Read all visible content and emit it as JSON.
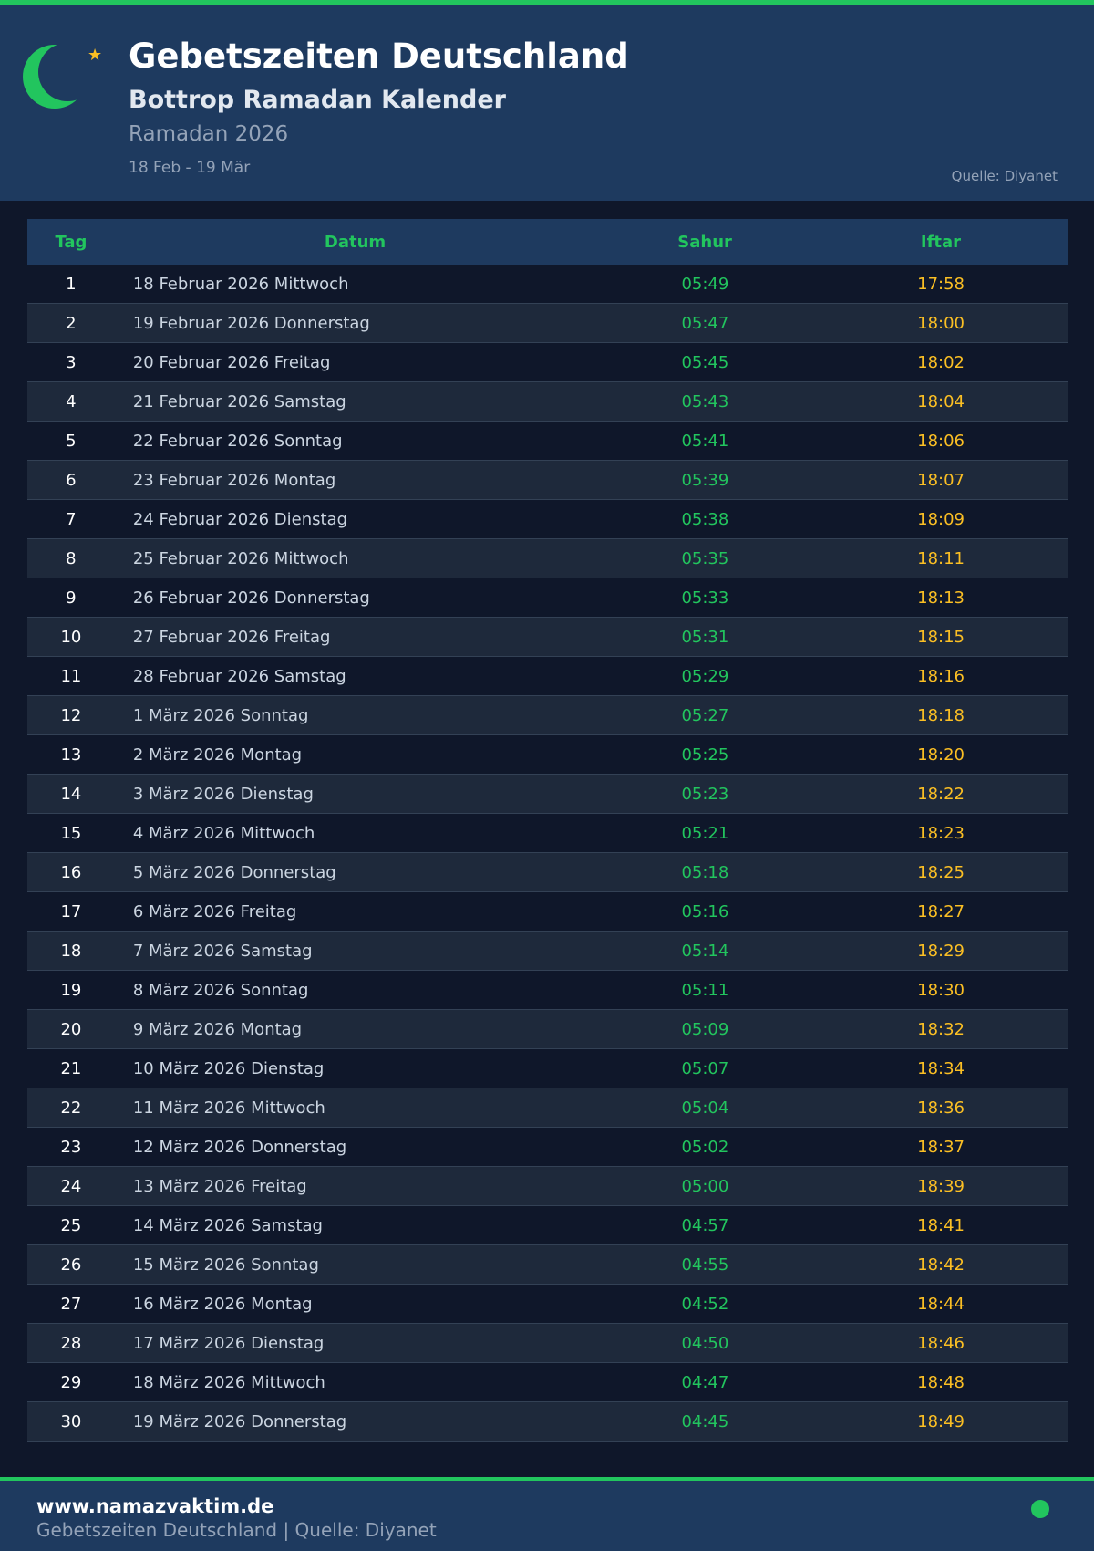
{
  "header": {
    "title": "Gebetszeiten Deutschland",
    "subtitle": "Bottrop Ramadan Kalender",
    "year_label": "Ramadan 2026",
    "range": "18 Feb - 19 Mär",
    "source": "Quelle: Diyanet"
  },
  "colors": {
    "accent": "#22c55e",
    "iftar": "#fbbf24",
    "header_bg": "#1e3a5f",
    "bg": "#0f172a"
  },
  "table": {
    "headers": [
      "Tag",
      "Datum",
      "Sahur",
      "Iftar"
    ],
    "rows": [
      [
        "1",
        "18 Februar 2026 Mittwoch",
        "05:49",
        "17:58"
      ],
      [
        "2",
        "19 Februar 2026 Donnerstag",
        "05:47",
        "18:00"
      ],
      [
        "3",
        "20 Februar 2026 Freitag",
        "05:45",
        "18:02"
      ],
      [
        "4",
        "21 Februar 2026 Samstag",
        "05:43",
        "18:04"
      ],
      [
        "5",
        "22 Februar 2026 Sonntag",
        "05:41",
        "18:06"
      ],
      [
        "6",
        "23 Februar 2026 Montag",
        "05:39",
        "18:07"
      ],
      [
        "7",
        "24 Februar 2026 Dienstag",
        "05:38",
        "18:09"
      ],
      [
        "8",
        "25 Februar 2026 Mittwoch",
        "05:35",
        "18:11"
      ],
      [
        "9",
        "26 Februar 2026 Donnerstag",
        "05:33",
        "18:13"
      ],
      [
        "10",
        "27 Februar 2026 Freitag",
        "05:31",
        "18:15"
      ],
      [
        "11",
        "28 Februar 2026 Samstag",
        "05:29",
        "18:16"
      ],
      [
        "12",
        "1 März 2026 Sonntag",
        "05:27",
        "18:18"
      ],
      [
        "13",
        "2 März 2026 Montag",
        "05:25",
        "18:20"
      ],
      [
        "14",
        "3 März 2026 Dienstag",
        "05:23",
        "18:22"
      ],
      [
        "15",
        "4 März 2026 Mittwoch",
        "05:21",
        "18:23"
      ],
      [
        "16",
        "5 März 2026 Donnerstag",
        "05:18",
        "18:25"
      ],
      [
        "17",
        "6 März 2026 Freitag",
        "05:16",
        "18:27"
      ],
      [
        "18",
        "7 März 2026 Samstag",
        "05:14",
        "18:29"
      ],
      [
        "19",
        "8 März 2026 Sonntag",
        "05:11",
        "18:30"
      ],
      [
        "20",
        "9 März 2026 Montag",
        "05:09",
        "18:32"
      ],
      [
        "21",
        "10 März 2026 Dienstag",
        "05:07",
        "18:34"
      ],
      [
        "22",
        "11 März 2026 Mittwoch",
        "05:04",
        "18:36"
      ],
      [
        "23",
        "12 März 2026 Donnerstag",
        "05:02",
        "18:37"
      ],
      [
        "24",
        "13 März 2026 Freitag",
        "05:00",
        "18:39"
      ],
      [
        "25",
        "14 März 2026 Samstag",
        "04:57",
        "18:41"
      ],
      [
        "26",
        "15 März 2026 Sonntag",
        "04:55",
        "18:42"
      ],
      [
        "27",
        "16 März 2026 Montag",
        "04:52",
        "18:44"
      ],
      [
        "28",
        "17 März 2026 Dienstag",
        "04:50",
        "18:46"
      ],
      [
        "29",
        "18 März 2026 Mittwoch",
        "04:47",
        "18:48"
      ],
      [
        "30",
        "19 März 2026 Donnerstag",
        "04:45",
        "18:49"
      ]
    ]
  },
  "footer": {
    "site": "www.namazvaktim.de",
    "tagline": "Gebetszeiten Deutschland | Quelle: Diyanet"
  }
}
